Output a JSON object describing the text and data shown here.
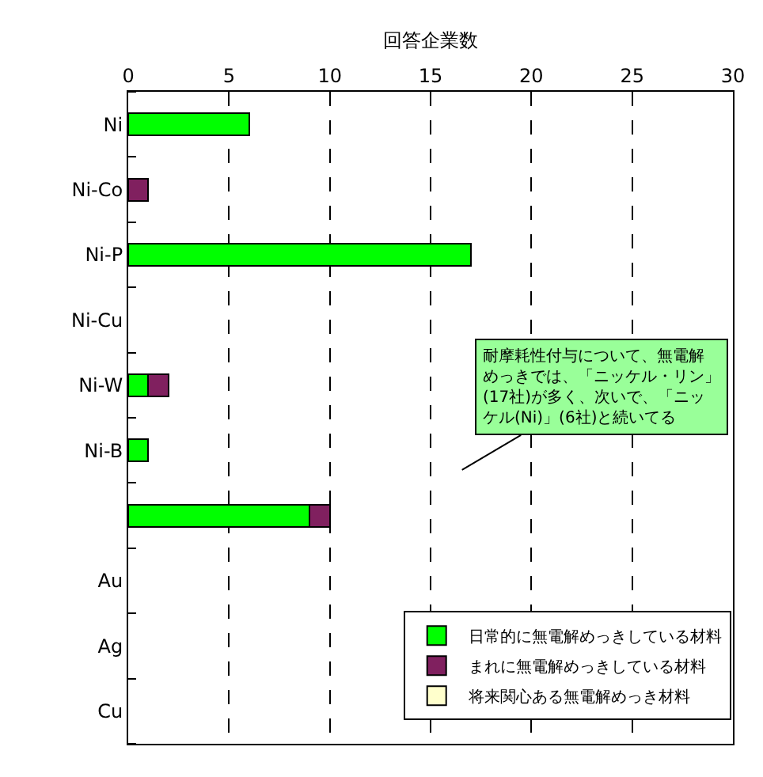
{
  "chart_data": {
    "type": "bar",
    "orientation": "horizontal",
    "stacked": true,
    "xlabel": "回答企業数",
    "categories": [
      "Ni",
      "Ni-Co",
      "Ni-P",
      "Ni-Cu",
      "Ni-W",
      "Ni-B",
      null,
      "Au",
      "Ag",
      "Cu"
    ],
    "series": [
      {
        "name": "日常的に無電解めっきしている材料",
        "color": "#00ff00",
        "values": [
          6,
          0,
          17,
          0,
          1,
          1,
          9,
          0,
          0,
          0
        ]
      },
      {
        "name": "まれに無電解めっきしている材料",
        "color": "#80205f",
        "values": [
          0,
          1,
          0,
          0,
          1,
          0,
          1,
          0,
          0,
          0
        ]
      },
      {
        "name": "将来関心ある無電解めっき材料",
        "color": "#ffffcc",
        "values": [
          0,
          0,
          0,
          0,
          0,
          0,
          0,
          0,
          0,
          0
        ]
      }
    ],
    "xlim": [
      0,
      30
    ],
    "xticks": [
      0,
      5,
      10,
      15,
      20,
      25,
      30
    ],
    "grid": "x",
    "legend": "bottom right",
    "annotations": [
      "耐摩耗性付与について、無電解めっきでは、「ニッケル・リン」(17社)が多く、次いで、「ニッケル(Ni)」(6社)と続いてる"
    ]
  }
}
